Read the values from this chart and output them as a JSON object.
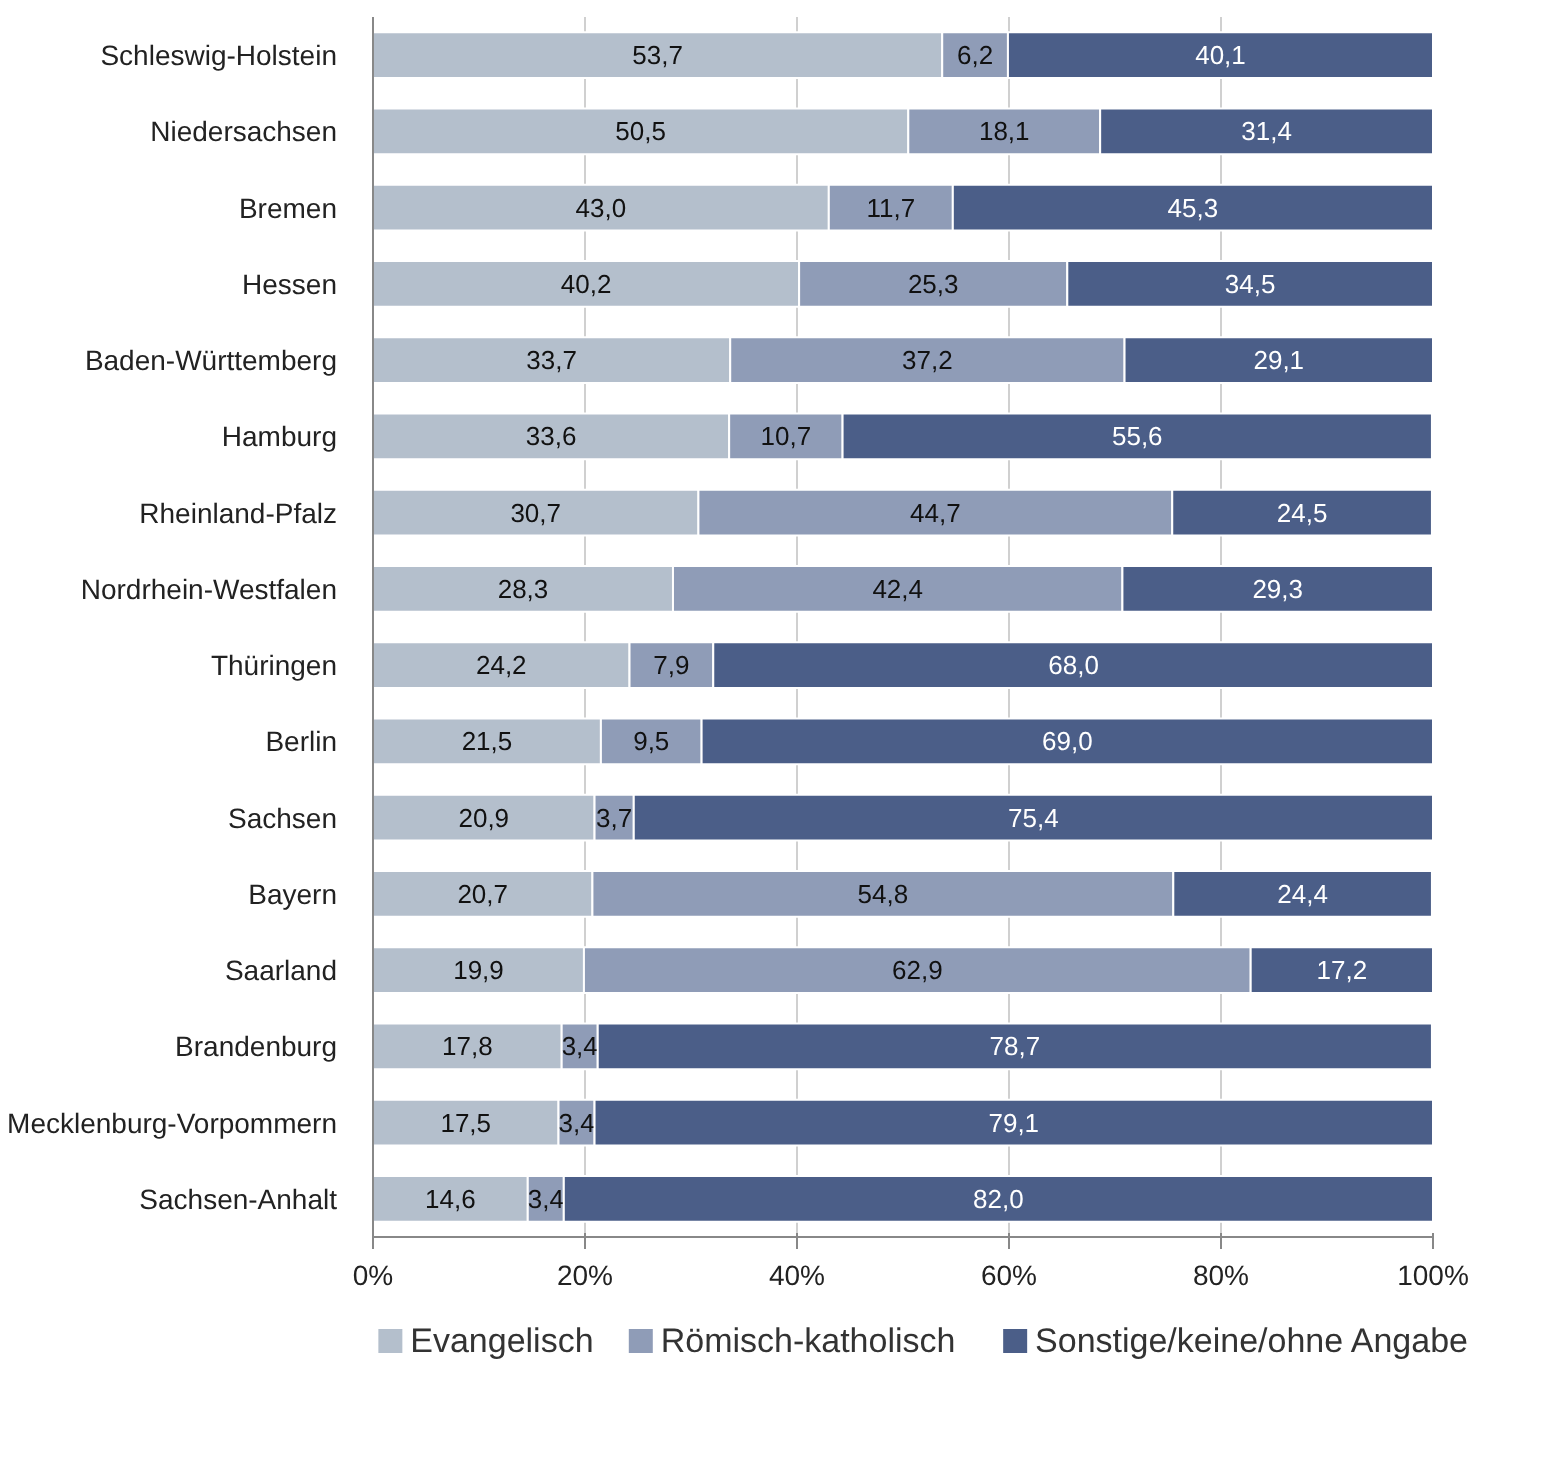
{
  "chart_data": {
    "type": "bar",
    "orientation": "horizontal",
    "stacked": true,
    "grid": "x",
    "legend": "bottom",
    "categories": [
      "Schleswig-Holstein",
      "Niedersachsen",
      "Bremen",
      "Hessen",
      "Baden-Württemberg",
      "Hamburg",
      "Rheinland-Pfalz",
      "Nordrhein-Westfalen",
      "Thüringen",
      "Berlin",
      "Sachsen",
      "Bayern",
      "Saarland",
      "Brandenburg",
      "Mecklenburg-Vorpommern",
      "Sachsen-Anhalt"
    ],
    "xlim": [
      0,
      100
    ],
    "xticks": [
      {
        "value": 0,
        "label": "0%"
      },
      {
        "value": 20,
        "label": "20%"
      },
      {
        "value": 40,
        "label": "40%"
      },
      {
        "value": 60,
        "label": "60%"
      },
      {
        "value": 80,
        "label": "80%"
      },
      {
        "value": 100,
        "label": "100%"
      }
    ],
    "series": [
      {
        "name": "Evangelisch",
        "color": "#b4bfcc",
        "values": [
          53.7,
          50.5,
          43.0,
          40.2,
          33.7,
          33.6,
          30.7,
          28.3,
          24.2,
          21.5,
          20.9,
          20.7,
          19.9,
          17.8,
          17.5,
          14.6
        ],
        "value_labels": [
          "53,7",
          "50,5",
          "43,0",
          "40,2",
          "33,7",
          "33,6",
          "30,7",
          "28,3",
          "24,2",
          "21,5",
          "20,9",
          "20,7",
          "19,9",
          "17,8",
          "17,5",
          "14,6"
        ]
      },
      {
        "name": "Römisch-katholisch",
        "color": "#8f9cb7",
        "values": [
          6.2,
          18.1,
          11.7,
          25.3,
          37.2,
          10.7,
          44.7,
          42.4,
          7.9,
          9.5,
          3.7,
          54.8,
          62.9,
          3.4,
          3.4,
          3.4
        ],
        "value_labels": [
          "6,2",
          "18,1",
          "11,7",
          "25,3",
          "37,2",
          "10,7",
          "44,7",
          "42,4",
          "7,9",
          "9,5",
          "3,7",
          "54,8",
          "62,9",
          "3,4",
          "3,4",
          "3,4"
        ]
      },
      {
        "name": "Sonstige/keine/ohne Angabe",
        "color": "#4b5e88",
        "values": [
          40.1,
          31.4,
          45.3,
          34.5,
          29.1,
          55.6,
          24.5,
          29.3,
          68.0,
          69.0,
          75.4,
          24.4,
          17.2,
          78.7,
          79.1,
          82.0
        ],
        "value_labels": [
          "40,1",
          "31,4",
          "45,3",
          "34,5",
          "29,1",
          "55,6",
          "24,5",
          "29,3",
          "68,0",
          "69,0",
          "75,4",
          "24,4",
          "17,2",
          "78,7",
          "79,1",
          "82,0"
        ]
      }
    ]
  }
}
